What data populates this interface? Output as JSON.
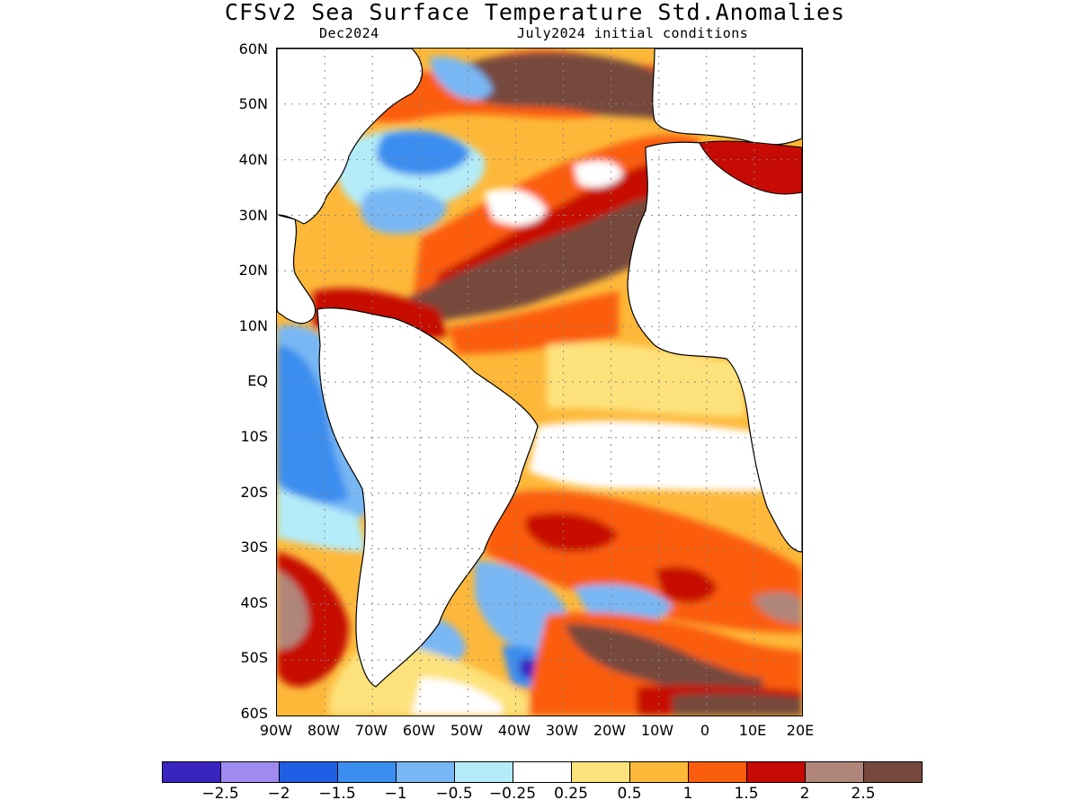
{
  "title": "CFSv2 Sea Surface Temperature Std.Anomalies",
  "valid_month": "Dec2024",
  "init_label": "July2024 initial conditions",
  "lat_labels": [
    "60N",
    "50N",
    "40N",
    "30N",
    "20N",
    "10N",
    "EQ",
    "10S",
    "20S",
    "30S",
    "40S",
    "50S",
    "60S"
  ],
  "lon_labels": [
    "90W",
    "80W",
    "70W",
    "60W",
    "50W",
    "40W",
    "30W",
    "20W",
    "10W",
    "0",
    "10E",
    "20E"
  ],
  "colorbar": {
    "colors": [
      "#3a24c0",
      "#9f8af2",
      "#1f5fe6",
      "#3b8ef0",
      "#78b7f4",
      "#b3ecf8",
      "#ffffff",
      "#fde27c",
      "#fdb839",
      "#fb5d0e",
      "#c60b05",
      "#b0857a",
      "#76493e"
    ],
    "labels": [
      "−2.5",
      "−2",
      "−1.5",
      "−1",
      "−0.5",
      "−0.25",
      "0.25",
      "0.5",
      "1",
      "1.5",
      "2",
      "2.5"
    ]
  },
  "domain": {
    "lon_range": [
      -90,
      20
    ],
    "lat_range": [
      -60,
      60
    ]
  }
}
